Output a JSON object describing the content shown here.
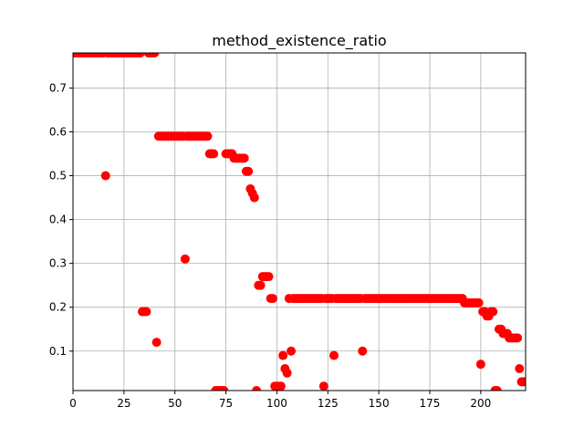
{
  "chart_data": {
    "type": "scatter",
    "title": "method_existence_ratio",
    "xlabel": "",
    "ylabel": "",
    "xlim": [
      0,
      222
    ],
    "ylim": [
      0.01,
      0.78
    ],
    "grid": true,
    "marker_color": "#ff0000",
    "x_ticks": [
      0,
      25,
      50,
      75,
      100,
      125,
      150,
      175,
      200
    ],
    "y_ticks": [
      0.1,
      0.2,
      0.3,
      0.4,
      0.5,
      0.6,
      0.7
    ],
    "x_tick_labels": [
      "0",
      "25",
      "50",
      "75",
      "100",
      "125",
      "150",
      "175",
      "200"
    ],
    "y_tick_labels": [
      "0.1",
      "0.2",
      "0.3",
      "0.4",
      "0.5",
      "0.6",
      "0.7"
    ],
    "series": [
      {
        "values": [
          [
            0,
            0.78
          ],
          [
            1,
            0.78
          ],
          [
            2,
            0.78
          ],
          [
            3,
            0.78
          ],
          [
            4,
            0.78
          ],
          [
            5,
            0.78
          ],
          [
            6,
            0.78
          ],
          [
            7,
            0.78
          ],
          [
            8,
            0.78
          ],
          [
            9,
            0.78
          ],
          [
            10,
            0.78
          ],
          [
            11,
            0.78
          ],
          [
            12,
            0.78
          ],
          [
            13,
            0.78
          ],
          [
            14,
            0.78
          ],
          [
            15,
            0.78
          ],
          [
            16,
            0.5
          ],
          [
            17,
            0.78
          ],
          [
            18,
            0.78
          ],
          [
            19,
            0.78
          ],
          [
            20,
            0.78
          ],
          [
            21,
            0.78
          ],
          [
            22,
            0.78
          ],
          [
            23,
            0.78
          ],
          [
            24,
            0.78
          ],
          [
            25,
            0.78
          ],
          [
            26,
            0.78
          ],
          [
            27,
            0.78
          ],
          [
            28,
            0.78
          ],
          [
            29,
            0.78
          ],
          [
            30,
            0.78
          ],
          [
            31,
            0.78
          ],
          [
            32,
            0.78
          ],
          [
            33,
            0.78
          ],
          [
            34,
            0.19
          ],
          [
            35,
            0.19
          ],
          [
            36,
            0.19
          ],
          [
            37,
            0.78
          ],
          [
            38,
            0.78
          ],
          [
            39,
            0.78
          ],
          [
            40,
            0.78
          ],
          [
            41,
            0.12
          ],
          [
            42,
            0.59
          ],
          [
            43,
            0.59
          ],
          [
            44,
            0.59
          ],
          [
            45,
            0.59
          ],
          [
            46,
            0.59
          ],
          [
            47,
            0.59
          ],
          [
            48,
            0.59
          ],
          [
            49,
            0.59
          ],
          [
            50,
            0.59
          ],
          [
            51,
            0.59
          ],
          [
            52,
            0.59
          ],
          [
            53,
            0.59
          ],
          [
            54,
            0.59
          ],
          [
            55,
            0.31
          ],
          [
            56,
            0.59
          ],
          [
            57,
            0.59
          ],
          [
            58,
            0.59
          ],
          [
            59,
            0.59
          ],
          [
            60,
            0.59
          ],
          [
            61,
            0.59
          ],
          [
            62,
            0.59
          ],
          [
            63,
            0.59
          ],
          [
            64,
            0.59
          ],
          [
            65,
            0.59
          ],
          [
            66,
            0.59
          ],
          [
            67,
            0.55
          ],
          [
            68,
            0.55
          ],
          [
            69,
            0.55
          ],
          [
            70,
            0.01
          ],
          [
            71,
            0.01
          ],
          [
            72,
            0.01
          ],
          [
            73,
            0.01
          ],
          [
            74,
            0.01
          ],
          [
            75,
            0.55
          ],
          [
            76,
            0.55
          ],
          [
            77,
            0.55
          ],
          [
            78,
            0.55
          ],
          [
            79,
            0.54
          ],
          [
            80,
            0.54
          ],
          [
            81,
            0.54
          ],
          [
            82,
            0.54
          ],
          [
            83,
            0.54
          ],
          [
            84,
            0.54
          ],
          [
            85,
            0.51
          ],
          [
            86,
            0.51
          ],
          [
            87,
            0.47
          ],
          [
            88,
            0.46
          ],
          [
            89,
            0.45
          ],
          [
            90,
            0.01
          ],
          [
            91,
            0.25
          ],
          [
            92,
            0.25
          ],
          [
            93,
            0.27
          ],
          [
            94,
            0.27
          ],
          [
            95,
            0.27
          ],
          [
            96,
            0.27
          ],
          [
            97,
            0.22
          ],
          [
            98,
            0.22
          ],
          [
            99,
            0.02
          ],
          [
            100,
            0.02
          ],
          [
            101,
            0.02
          ],
          [
            102,
            0.02
          ],
          [
            103,
            0.09
          ],
          [
            104,
            0.06
          ],
          [
            105,
            0.05
          ],
          [
            106,
            0.22
          ],
          [
            107,
            0.1
          ],
          [
            108,
            0.22
          ],
          [
            109,
            0.22
          ],
          [
            110,
            0.22
          ],
          [
            111,
            0.22
          ],
          [
            112,
            0.22
          ],
          [
            113,
            0.22
          ],
          [
            114,
            0.22
          ],
          [
            115,
            0.22
          ],
          [
            116,
            0.22
          ],
          [
            117,
            0.22
          ],
          [
            118,
            0.22
          ],
          [
            119,
            0.22
          ],
          [
            120,
            0.22
          ],
          [
            121,
            0.22
          ],
          [
            122,
            0.22
          ],
          [
            123,
            0.02
          ],
          [
            124,
            0.22
          ],
          [
            125,
            0.22
          ],
          [
            126,
            0.22
          ],
          [
            127,
            0.22
          ],
          [
            128,
            0.09
          ],
          [
            129,
            0.22
          ],
          [
            130,
            0.22
          ],
          [
            131,
            0.22
          ],
          [
            132,
            0.22
          ],
          [
            133,
            0.22
          ],
          [
            134,
            0.22
          ],
          [
            135,
            0.22
          ],
          [
            136,
            0.22
          ],
          [
            137,
            0.22
          ],
          [
            138,
            0.22
          ],
          [
            139,
            0.22
          ],
          [
            140,
            0.22
          ],
          [
            141,
            0.22
          ],
          [
            142,
            0.1
          ],
          [
            143,
            0.22
          ],
          [
            144,
            0.22
          ],
          [
            145,
            0.22
          ],
          [
            146,
            0.22
          ],
          [
            147,
            0.22
          ],
          [
            148,
            0.22
          ],
          [
            149,
            0.22
          ],
          [
            150,
            0.22
          ],
          [
            151,
            0.22
          ],
          [
            152,
            0.22
          ],
          [
            153,
            0.22
          ],
          [
            154,
            0.22
          ],
          [
            155,
            0.22
          ],
          [
            156,
            0.22
          ],
          [
            157,
            0.22
          ],
          [
            158,
            0.22
          ],
          [
            159,
            0.22
          ],
          [
            160,
            0.22
          ],
          [
            161,
            0.22
          ],
          [
            162,
            0.22
          ],
          [
            163,
            0.22
          ],
          [
            164,
            0.22
          ],
          [
            165,
            0.22
          ],
          [
            166,
            0.22
          ],
          [
            167,
            0.22
          ],
          [
            168,
            0.22
          ],
          [
            169,
            0.22
          ],
          [
            170,
            0.22
          ],
          [
            171,
            0.22
          ],
          [
            172,
            0.22
          ],
          [
            173,
            0.22
          ],
          [
            174,
            0.22
          ],
          [
            175,
            0.22
          ],
          [
            176,
            0.22
          ],
          [
            177,
            0.22
          ],
          [
            178,
            0.22
          ],
          [
            179,
            0.22
          ],
          [
            180,
            0.22
          ],
          [
            181,
            0.22
          ],
          [
            182,
            0.22
          ],
          [
            183,
            0.22
          ],
          [
            184,
            0.22
          ],
          [
            185,
            0.22
          ],
          [
            186,
            0.22
          ],
          [
            187,
            0.22
          ],
          [
            188,
            0.22
          ],
          [
            189,
            0.22
          ],
          [
            190,
            0.22
          ],
          [
            191,
            0.22
          ],
          [
            192,
            0.21
          ],
          [
            193,
            0.21
          ],
          [
            194,
            0.21
          ],
          [
            195,
            0.21
          ],
          [
            196,
            0.21
          ],
          [
            197,
            0.21
          ],
          [
            198,
            0.21
          ],
          [
            199,
            0.21
          ],
          [
            200,
            0.07
          ],
          [
            201,
            0.19
          ],
          [
            202,
            0.19
          ],
          [
            203,
            0.18
          ],
          [
            204,
            0.18
          ],
          [
            205,
            0.19
          ],
          [
            206,
            0.19
          ],
          [
            207,
            0.01
          ],
          [
            208,
            0.01
          ],
          [
            209,
            0.15
          ],
          [
            210,
            0.15
          ],
          [
            211,
            0.14
          ],
          [
            212,
            0.14
          ],
          [
            213,
            0.14
          ],
          [
            214,
            0.13
          ],
          [
            215,
            0.13
          ],
          [
            216,
            0.13
          ],
          [
            217,
            0.13
          ],
          [
            218,
            0.13
          ],
          [
            219,
            0.06
          ],
          [
            220,
            0.03
          ],
          [
            221,
            0.03
          ]
        ]
      }
    ]
  }
}
